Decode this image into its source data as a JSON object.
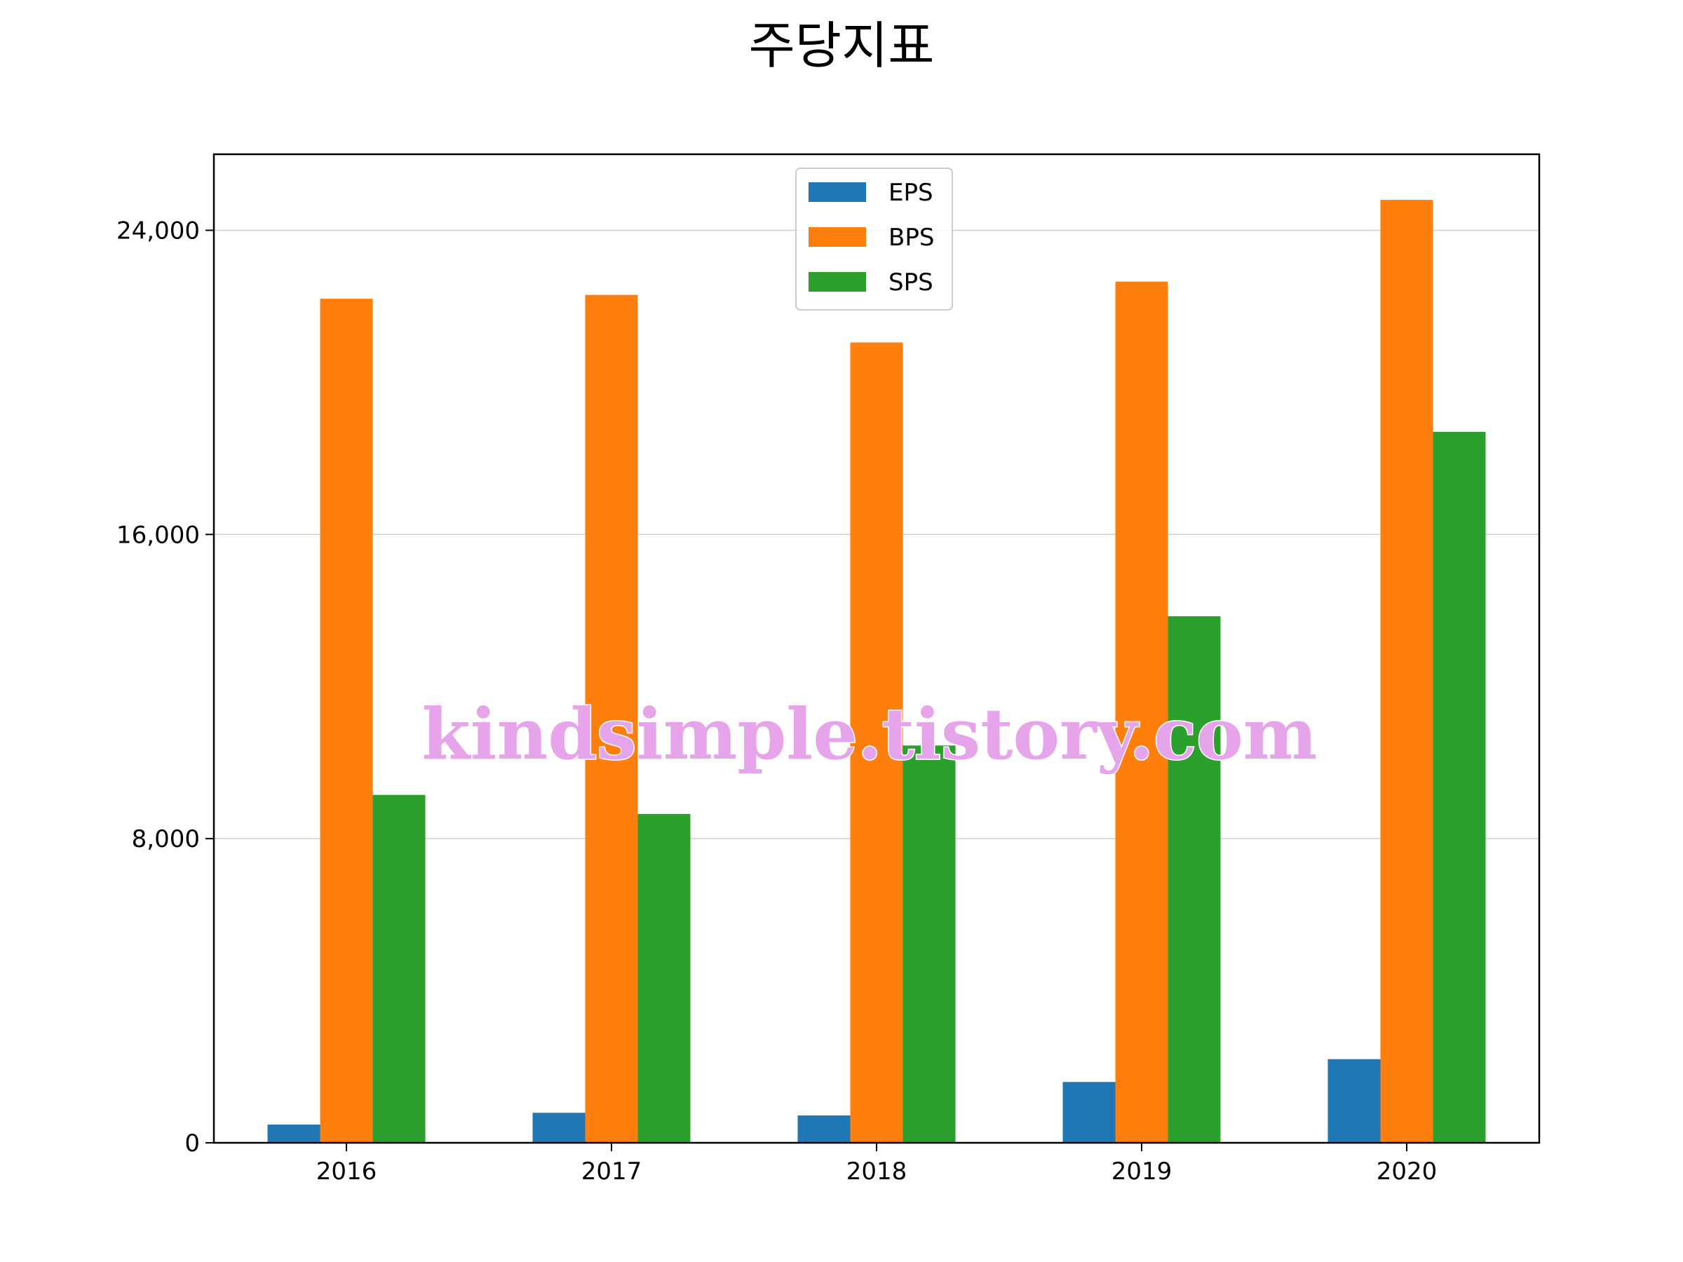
{
  "chart_data": {
    "type": "bar",
    "title": "주당지표",
    "xlabel": "",
    "ylabel": "",
    "categories": [
      "2016",
      "2017",
      "2018",
      "2019",
      "2020"
    ],
    "series": [
      {
        "name": "EPS",
        "values": [
          480,
          790,
          720,
          1600,
          2200
        ]
      },
      {
        "name": "BPS",
        "values": [
          22200,
          22300,
          21050,
          22650,
          24800
        ]
      },
      {
        "name": "SPS",
        "values": [
          9150,
          8650,
          10450,
          13850,
          18700
        ]
      }
    ],
    "ylim": [
      0,
      26000
    ],
    "yticks": [
      0,
      8000,
      16000,
      24000
    ],
    "ytick_labels": [
      "0",
      "8,000",
      "16,000",
      "24,000"
    ],
    "grid": "y",
    "legend_position": "top-center"
  },
  "colors": {
    "EPS": "#1f77b4",
    "BPS": "#ff7f0e",
    "SPS": "#2ca02c"
  },
  "watermark": "kindsimple.tistory.com"
}
